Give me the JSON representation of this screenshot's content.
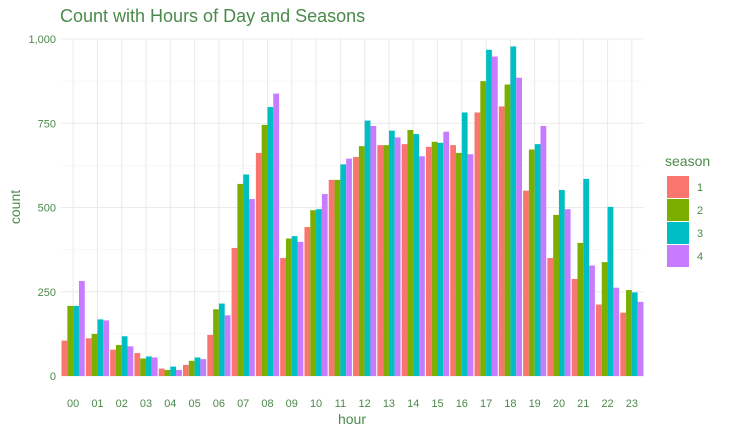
{
  "chart_data": {
    "type": "bar",
    "title": "Count with Hours of Day and Seasons",
    "xlabel": "hour",
    "ylabel": "count",
    "categories": [
      "00",
      "01",
      "02",
      "03",
      "04",
      "05",
      "06",
      "07",
      "08",
      "09",
      "10",
      "11",
      "12",
      "13",
      "14",
      "15",
      "16",
      "17",
      "18",
      "19",
      "20",
      "21",
      "22",
      "23"
    ],
    "ylim": [
      0,
      1000
    ],
    "yticks": [
      0,
      250,
      500,
      750,
      1000
    ],
    "ytick_labels": [
      "0",
      "250",
      "500",
      "750",
      "1,000"
    ],
    "grid": true,
    "legend": {
      "title": "season",
      "placement": "right",
      "entries": [
        "1",
        "2",
        "3",
        "4"
      ]
    },
    "series": [
      {
        "name": "1",
        "color": "#F8766D",
        "values": [
          105,
          112,
          78,
          68,
          22,
          33,
          122,
          380,
          662,
          350,
          442,
          582,
          650,
          685,
          688,
          680,
          685,
          782,
          800,
          550,
          350,
          288,
          212,
          188
        ]
      },
      {
        "name": "2",
        "color": "#7CAE00",
        "values": [
          208,
          125,
          92,
          52,
          18,
          45,
          198,
          570,
          745,
          408,
          492,
          582,
          682,
          685,
          730,
          695,
          662,
          875,
          865,
          672,
          478,
          395,
          338,
          255
        ]
      },
      {
        "name": "3",
        "color": "#00BFC4",
        "values": [
          208,
          168,
          118,
          58,
          28,
          55,
          215,
          598,
          798,
          415,
          495,
          628,
          758,
          728,
          718,
          692,
          782,
          968,
          978,
          688,
          552,
          585,
          502,
          248
        ]
      },
      {
        "name": "4",
        "color": "#C77CFF",
        "values": [
          282,
          165,
          88,
          55,
          18,
          50,
          180,
          525,
          838,
          398,
          540,
          645,
          742,
          708,
          652,
          725,
          658,
          948,
          885,
          742,
          495,
          328,
          262,
          220
        ]
      }
    ]
  }
}
